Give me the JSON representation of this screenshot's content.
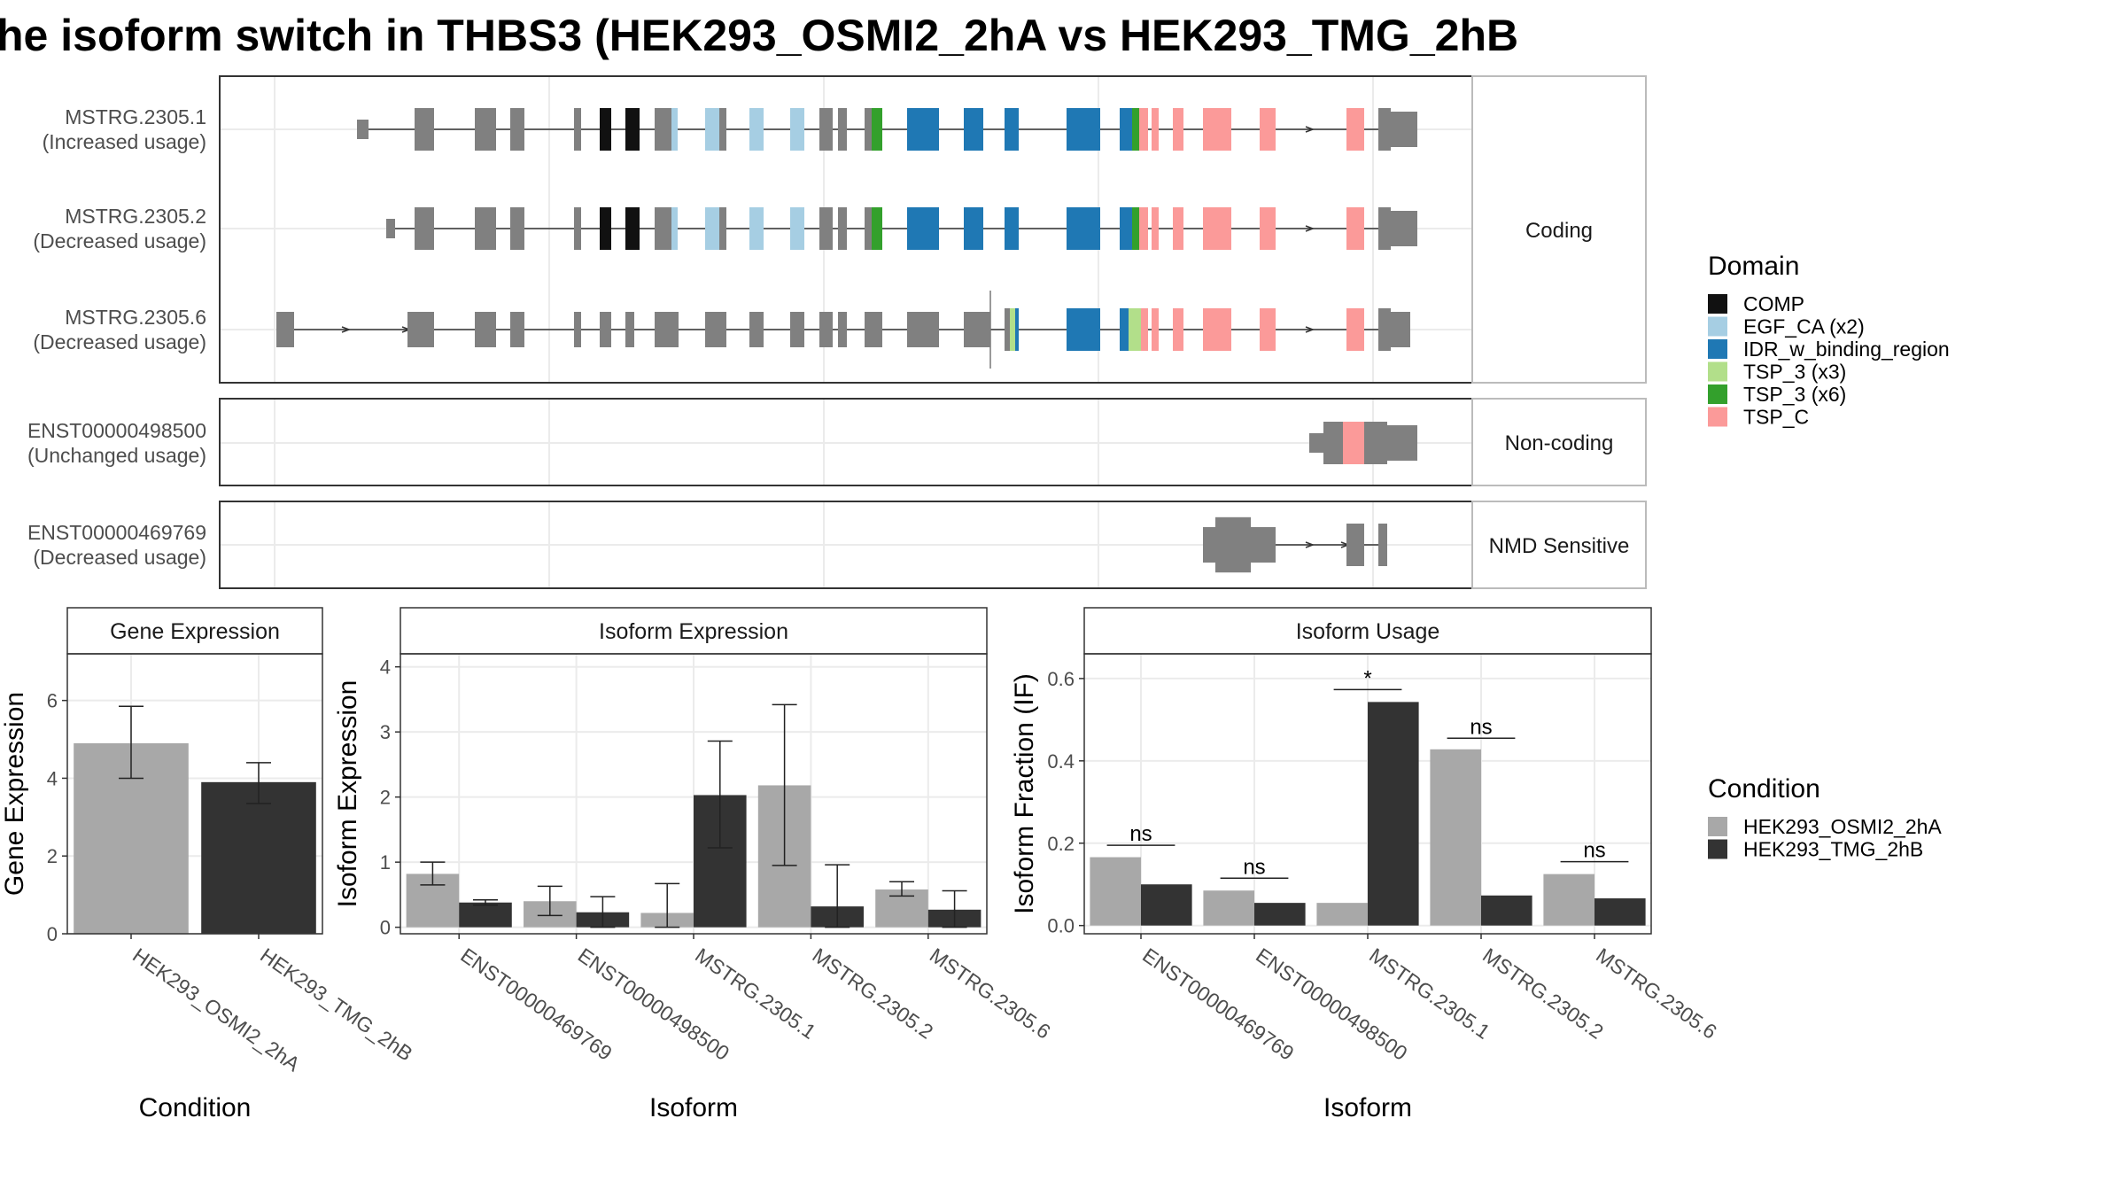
{
  "title": "he isoform switch in THBS3 (HEK293_OSMI2_2hA vs HEK293_TMG_2hB",
  "colors": {
    "cond1": "#a8a8a8",
    "cond2": "#333333",
    "exon": "#808080",
    "COMP": "#111111",
    "EGF_CA": "#a6cee3",
    "IDR": "#1f78b4",
    "TSP3x3": "#b2df8a",
    "TSP3x6": "#33a02c",
    "TSP_C": "#fb9a99"
  },
  "transcript_panels": [
    {
      "label": "Coding",
      "rows": [
        {
          "id": "MSTRG.2305.1",
          "usage": "(Increased usage)"
        },
        {
          "id": "MSTRG.2305.2",
          "usage": "(Decreased usage)"
        },
        {
          "id": "MSTRG.2305.6",
          "usage": "(Decreased usage)"
        }
      ]
    },
    {
      "label": "Non-coding",
      "rows": [
        {
          "id": "ENST00000498500",
          "usage": "(Unchanged usage)"
        }
      ]
    },
    {
      "label": "NMD Sensitive",
      "rows": [
        {
          "id": "ENST00000469769",
          "usage": "(Decreased usage)"
        }
      ]
    }
  ],
  "legends": {
    "domain_title": "Domain",
    "domain_items": [
      {
        "label": "COMP",
        "color": "#111111"
      },
      {
        "label": "EGF_CA (x2)",
        "color": "#a6cee3"
      },
      {
        "label": "IDR_w_binding_region",
        "color": "#1f78b4"
      },
      {
        "label": "TSP_3 (x3)",
        "color": "#b2df8a"
      },
      {
        "label": "TSP_3 (x6)",
        "color": "#33a02c"
      },
      {
        "label": "TSP_C",
        "color": "#fb9a99"
      }
    ],
    "condition_title": "Condition",
    "condition_items": [
      {
        "label": "HEK293_OSMI2_2hA",
        "color": "#a8a8a8"
      },
      {
        "label": "HEK293_TMG_2hB",
        "color": "#333333"
      }
    ]
  },
  "chart_data": [
    {
      "type": "bar",
      "title": "Gene Expression",
      "xlabel": "Condition",
      "ylabel": "Gene Expression",
      "ylim": [
        0,
        7.2
      ],
      "yticks": [
        0,
        2,
        4,
        6
      ],
      "categories": [
        "HEK293_OSMI2_2hA",
        "HEK293_TMG_2hB"
      ],
      "series": [
        {
          "name": "HEK293_OSMI2_2hA",
          "values": [
            4.9,
            null
          ],
          "err_low": [
            4.0,
            null
          ],
          "err_high": [
            5.85,
            null
          ]
        },
        {
          "name": "HEK293_TMG_2hB",
          "values": [
            null,
            3.9
          ],
          "err_low": [
            null,
            3.35
          ],
          "err_high": [
            null,
            4.4
          ]
        }
      ]
    },
    {
      "type": "bar",
      "title": "Isoform Expression",
      "xlabel": "Isoform",
      "ylabel": "Isoform Expression",
      "ylim": [
        -0.1,
        4.2
      ],
      "yticks": [
        0,
        1,
        2,
        3,
        4
      ],
      "categories": [
        "ENST00000469769",
        "ENST00000498500",
        "MSTRG.2305.1",
        "MSTRG.2305.2",
        "MSTRG.2305.6"
      ],
      "series": [
        {
          "name": "HEK293_OSMI2_2hA",
          "values": [
            0.82,
            0.4,
            0.22,
            2.18,
            0.58
          ],
          "err_low": [
            0.65,
            0.18,
            0.0,
            0.95,
            0.48
          ],
          "err_high": [
            1.0,
            0.63,
            0.67,
            3.42,
            0.7
          ]
        },
        {
          "name": "HEK293_TMG_2hB",
          "values": [
            0.38,
            0.23,
            2.03,
            0.32,
            0.27
          ],
          "err_low": [
            0.34,
            0.0,
            1.22,
            0.0,
            0.0
          ],
          "err_high": [
            0.42,
            0.47,
            2.86,
            0.96,
            0.56
          ]
        }
      ]
    },
    {
      "type": "bar",
      "title": "Isoform Usage",
      "xlabel": "Isoform",
      "ylabel": "Isoform Fraction (IF)",
      "ylim": [
        -0.02,
        0.66
      ],
      "yticks": [
        0.0,
        0.2,
        0.4,
        0.6
      ],
      "ytick_labels": [
        "0.0",
        "0.2",
        "0.4",
        "0.6"
      ],
      "categories": [
        "ENST00000469769",
        "ENST00000498500",
        "MSTRG.2305.1",
        "MSTRG.2305.2",
        "MSTRG.2305.6"
      ],
      "series": [
        {
          "name": "HEK293_OSMI2_2hA",
          "values": [
            0.166,
            0.085,
            0.055,
            0.428,
            0.125
          ]
        },
        {
          "name": "HEK293_TMG_2hB",
          "values": [
            0.1,
            0.055,
            0.543,
            0.073,
            0.066
          ]
        }
      ],
      "significance": [
        {
          "label": "ns",
          "y": 0.195
        },
        {
          "label": "ns",
          "y": 0.115
        },
        {
          "label": "*",
          "y": 0.573
        },
        {
          "label": "ns",
          "y": 0.455
        },
        {
          "label": "ns",
          "y": 0.155
        }
      ]
    }
  ]
}
